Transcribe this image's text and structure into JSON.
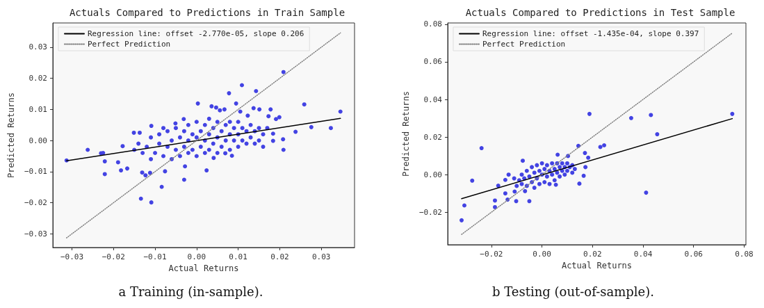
{
  "chart_data": [
    {
      "type": "scatter",
      "title": "Actuals Compared to Predictions in Train Sample",
      "xlabel": "Actual Returns",
      "ylabel": "Predicted Returns",
      "annotations": [
        "a Training (in-sample)."
      ],
      "xlim": [
        -0.0346,
        0.038
      ],
      "ylim": [
        -0.0344,
        0.0378
      ],
      "xticks": [
        {
          "value": -0.03,
          "label": "−0.03"
        },
        {
          "value": -0.02,
          "label": "−0.02"
        },
        {
          "value": -0.01,
          "label": "−0.01"
        },
        {
          "value": 0,
          "label": "0.00"
        },
        {
          "value": 0.01,
          "label": "0.01"
        },
        {
          "value": 0.02,
          "label": "0.02"
        },
        {
          "value": 0.03,
          "label": "0.03"
        }
      ],
      "yticks": [
        {
          "value": -0.03,
          "label": "−0.03"
        },
        {
          "value": -0.02,
          "label": "−0.02"
        },
        {
          "value": -0.01,
          "label": "−0.01"
        },
        {
          "value": 0,
          "label": "0.00"
        },
        {
          "value": 0.01,
          "label": "0.01"
        },
        {
          "value": 0.02,
          "label": "0.02"
        },
        {
          "value": 0.03,
          "label": "0.03"
        }
      ],
      "grid": false,
      "legend": "top left",
      "marker": "circle",
      "series": [
        {
          "type": "scatter",
          "color": "#4343e3",
          "x": [
            -0.0313,
            -0.0262,
            -0.023,
            -0.0225,
            -0.0221,
            -0.0221,
            -0.0189,
            -0.0182,
            -0.0178,
            -0.0167,
            -0.0151,
            -0.0137,
            -0.0134,
            -0.0131,
            -0.0123,
            -0.0112,
            -0.0109,
            -0.0109,
            -0.0084,
            -0.0076,
            -0.0051,
            -0.0031,
            -0.0028,
            -0.003,
            0.0003,
            0.0024,
            0.0036,
            0.0047,
            0.0056,
            0.0067,
            0.0078,
            0.0095,
            0.0105,
            0.0109,
            0.0123,
            0.0137,
            0.0143,
            0.0151,
            0.0173,
            0.0178,
            0.0184,
            0.0184,
            0.0191,
            0.0199,
            0.0208,
            0.0209,
            0.0209,
            0.0238,
            0.0259,
            0.0276,
            0.0323,
            0.0346,
            0.0085,
            0.0069,
            0.0041,
            -0.012,
            -0.011,
            -0.01,
            -0.009,
            -0.009,
            -0.008,
            -0.007,
            -0.007,
            -0.006,
            -0.006,
            -0.005,
            -0.005,
            -0.004,
            -0.004,
            -0.003,
            -0.003,
            -0.002,
            -0.002,
            -0.002,
            -0.001,
            -0.001,
            0,
            0,
            0,
            0.001,
            0.001,
            0.002,
            0.002,
            0.002,
            0.003,
            0.003,
            0.003,
            0.004,
            0.004,
            0.005,
            0.005,
            0.005,
            0.006,
            0.006,
            0.007,
            0.007,
            0.008,
            0.008,
            0.008,
            0.009,
            0.009,
            0.01,
            0.01,
            0.01,
            0.011,
            0.011,
            0.012,
            0.012,
            0.013,
            0.013,
            0.014,
            0.014,
            0.015,
            0.015,
            0.016,
            0.016,
            0.017,
            -0.013,
            -0.014,
            -0.015,
            -0.011,
            -0.008
          ],
          "values": [
            -0.0064,
            -0.003,
            -0.0041,
            -0.004,
            -0.0067,
            -0.0108,
            -0.007,
            -0.0096,
            -0.0018,
            -0.009,
            0.0025,
            0.0025,
            -0.0187,
            -0.0103,
            -0.0112,
            -0.0104,
            -0.0199,
            0.0047,
            -0.0149,
            -0.0099,
            0.0055,
            0.0069,
            -0.0083,
            -0.0126,
            0.0119,
            -0.0096,
            0.011,
            0.0106,
            0.0097,
            0.01,
            0.0152,
            0.0119,
            0.0093,
            0.0178,
            0.008,
            0.0104,
            0.0159,
            0.01,
            0.0078,
            0.01,
            -0.0001,
            0.0022,
            0.0069,
            0.0075,
            0.0004,
            -0.003,
            0.022,
            0.0028,
            0.0116,
            0.0043,
            0.004,
            0.0093,
            -0.0049,
            -0.0041,
            -0.0056,
            -0.002,
            0.001,
            -0.004,
            -0.001,
            0.002,
            -0.005,
            0.003,
            -0.002,
            0,
            -0.006,
            0.004,
            -0.003,
            0.001,
            -0.005,
            0.003,
            -0.002,
            0.005,
            0,
            -0.004,
            0.002,
            -0.003,
            0.006,
            0.001,
            -0.005,
            0.003,
            -0.002,
            0.005,
            0,
            -0.004,
            0.007,
            0.002,
            -0.003,
            0.004,
            -0.001,
            0.006,
            0.001,
            -0.004,
            0.003,
            -0.002,
            0.005,
            0,
            0.006,
            0.002,
            -0.003,
            0.004,
            0,
            0.006,
            0.002,
            -0.002,
            0.004,
            0,
            0.003,
            -0.001,
            0.005,
            0.001,
            0.003,
            -0.001,
            0.004,
            0,
            0.002,
            -0.002,
            0.004,
            -0.004,
            -0.001,
            -0.003,
            -0.006,
            0.004
          ]
        },
        {
          "type": "line",
          "name": "Regression line: offset -2.770e-05, slope 0.206",
          "color": "#000000",
          "line_style": "solid",
          "marker": "none",
          "x": [
            -0.0313,
            0.0346
          ],
          "values": [
            -0.0065,
            0.0071
          ]
        },
        {
          "type": "line",
          "name": "Perfect Prediction",
          "color": "#808080",
          "line_style": "dotted",
          "marker": "none",
          "x": [
            -0.0313,
            0.0346
          ],
          "values": [
            -0.0313,
            0.0346
          ]
        }
      ]
    },
    {
      "type": "scatter",
      "title": "Actuals Compared to Predictions in Test Sample",
      "xlabel": "Actual Returns",
      "ylabel": "Predicted Returns",
      "annotations": [
        "b Testing (out-of-sample)."
      ],
      "xlim": [
        -0.0373,
        0.0807
      ],
      "ylim": [
        -0.0373,
        0.0807
      ],
      "xticks": [
        {
          "value": -0.02,
          "label": "−0.02"
        },
        {
          "value": 0,
          "label": "0.00"
        },
        {
          "value": 0.02,
          "label": "0.02"
        },
        {
          "value": 0.04,
          "label": "0.04"
        },
        {
          "value": 0.06,
          "label": "0.06"
        },
        {
          "value": 0.08,
          "label": "0.08"
        }
      ],
      "yticks": [
        {
          "value": -0.02,
          "label": "−0.02"
        },
        {
          "value": 0,
          "label": "0.00"
        },
        {
          "value": 0.02,
          "label": "0.02"
        },
        {
          "value": 0.04,
          "label": "0.04"
        },
        {
          "value": 0.06,
          "label": "0.06"
        },
        {
          "value": 0.08,
          "label": "0.08"
        }
      ],
      "grid": false,
      "legend": "top left",
      "marker": "circle",
      "series": [
        {
          "type": "scatter",
          "color": "#4343e3",
          "x": [
            -0.0318,
            -0.0307,
            -0.0276,
            -0.0239,
            -0.0186,
            -0.0186,
            -0.0173,
            -0.0145,
            -0.0145,
            -0.0136,
            -0.0132,
            -0.0102,
            -0.0108,
            -0.0076,
            -0.0067,
            -0.005,
            0.0055,
            0.0062,
            0.0103,
            0.0144,
            0.0148,
            0.0165,
            0.017,
            0.0172,
            0.0183,
            0.0188,
            0.0231,
            0.0246,
            0.0353,
            0.0412,
            0.0431,
            0.0456,
            0.0753,
            -0.011,
            -0.01,
            -0.009,
            -0.008,
            -0.008,
            -0.007,
            -0.006,
            -0.006,
            -0.005,
            -0.004,
            -0.004,
            -0.003,
            -0.003,
            -0.002,
            -0.002,
            -0.001,
            -0.001,
            0,
            0,
            0.001,
            0.001,
            0.002,
            0.002,
            0.003,
            0.003,
            0.004,
            0.004,
            0.005,
            0.005,
            0.006,
            0.006,
            0.007,
            0.007,
            0.008,
            0.008,
            0.009,
            0.009,
            0.01,
            0.01,
            0.011,
            0.012,
            0.013,
            0.012
          ],
          "values": [
            -0.0243,
            -0.0164,
            -0.0032,
            0.0141,
            -0.0138,
            -0.0173,
            -0.0059,
            -0.0028,
            -0.01,
            -0.0133,
            0,
            -0.0141,
            -0.009,
            0.0074,
            -0.0088,
            -0.0141,
            -0.0054,
            0.0106,
            0.0099,
            0.0153,
            -0.0048,
            -0.0006,
            0.0115,
            0.004,
            0.009,
            0.0323,
            0.0147,
            0.0156,
            0.0301,
            -0.0096,
            0.0317,
            0.0215,
            0.0323,
            -0.002,
            -0.006,
            -0.003,
            0,
            -0.005,
            -0.002,
            0.002,
            -0.006,
            -0.001,
            0.004,
            -0.004,
            0.001,
            -0.007,
            0.005,
            -0.002,
            0.002,
            -0.005,
            0.006,
            0,
            0.003,
            -0.004,
            0.005,
            -0.001,
            0.002,
            -0.005,
            0.006,
            0,
            0.003,
            -0.003,
            0.006,
            0.001,
            0.004,
            -0.001,
            0.006,
            0.002,
            0.004,
            0,
            0.006,
            0.002,
            0.004,
            0.005,
            0.003,
            0.001
          ]
        },
        {
          "type": "line",
          "name": "Regression line: offset -1.435e-04, slope 0.397",
          "color": "#000000",
          "line_style": "solid",
          "marker": "none",
          "x": [
            -0.0318,
            0.0753
          ],
          "values": [
            -0.0128,
            0.0298
          ]
        },
        {
          "type": "line",
          "name": "Perfect Prediction",
          "color": "#808080",
          "line_style": "dotted",
          "marker": "none",
          "x": [
            -0.0318,
            0.0753
          ],
          "values": [
            -0.0318,
            0.0753
          ]
        }
      ]
    }
  ]
}
